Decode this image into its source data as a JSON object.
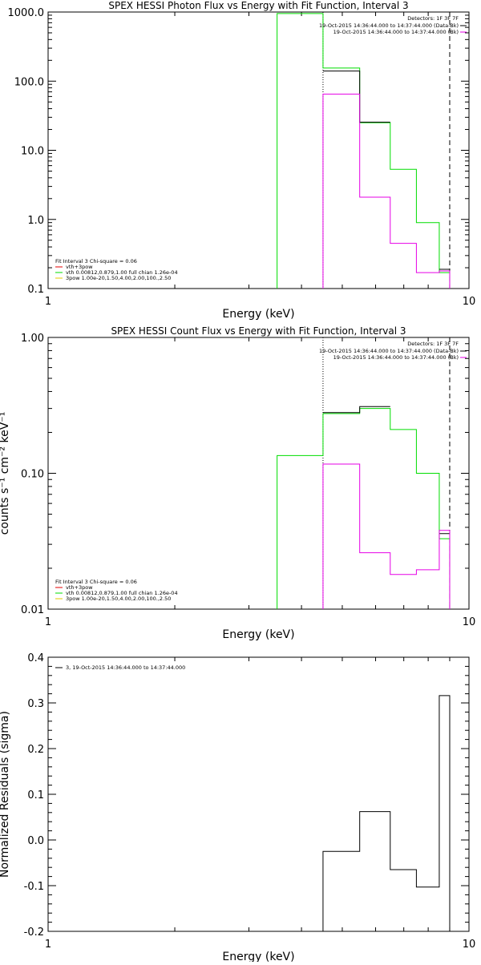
{
  "panels": [
    {
      "title": "SPEX HESSI Photon Flux vs Energy with Fit Function, Interval 3",
      "xlabel": "Energy (keV)",
      "ylabel": "",
      "detectors": "Detectors: 1F 3F 7F",
      "time_lines": [
        {
          "text": "19-Oct-2015 14:36:44.000 to 14:37:44.000 (Data-Bk)",
          "color": "#000000"
        },
        {
          "text": "19-Oct-2015 14:36:44.000 to 14:37:44.000 (Bk)",
          "color": "#e600e6"
        }
      ],
      "legend": [
        {
          "text": "Fit Interval 3   Chi-square = 0.06",
          "color": null
        },
        {
          "text": "vth+3pow",
          "color": "#e60000"
        },
        {
          "text": "vth 0.00812,0.879,1.00   full chian 1.26e-04",
          "color": "#00dd00"
        },
        {
          "text": "3pow 1.00e-20,1.50,4.00,2.00,100.,2.50",
          "color": "#e6c800"
        }
      ],
      "chart_data": {
        "type": "line",
        "xscale": "log",
        "yscale": "log",
        "xlim": [
          1,
          10
        ],
        "ylim": [
          0.1,
          1000
        ],
        "x_ticks": [
          {
            "v": 1,
            "label": "1"
          },
          {
            "v": 10,
            "label": "10"
          }
        ],
        "y_ticks": [
          {
            "v": 0.1,
            "label": "0.1"
          },
          {
            "v": 1,
            "label": "1.0"
          },
          {
            "v": 10,
            "label": "10.0"
          },
          {
            "v": 100,
            "label": "100.0"
          },
          {
            "v": 1000,
            "label": "1000.0"
          }
        ],
        "vlines": [
          {
            "x": 4.5,
            "dash": "dotted",
            "color": "#000000"
          },
          {
            "x": 9.0,
            "dash": "dashed",
            "color": "#000000"
          }
        ],
        "series": [
          {
            "color": "#00dd00",
            "bins": [
              [
                3.5,
                4.5,
                950
              ],
              [
                4.5,
                5.5,
                155
              ],
              [
                5.5,
                6.5,
                25
              ],
              [
                6.5,
                7.5,
                5.3
              ],
              [
                7.5,
                8.5,
                0.9
              ],
              [
                8.5,
                9.0,
                0.17
              ]
            ],
            "drop": true
          },
          {
            "color": "#000000",
            "bins": [
              [
                4.5,
                5.5,
                140
              ],
              [
                5.5,
                6.5,
                25.5
              ],
              [
                8.5,
                9.0,
                0.19
              ]
            ],
            "drop": false
          },
          {
            "color": "#e600e6",
            "bins": [
              [
                4.5,
                5.5,
                65
              ],
              [
                5.5,
                6.5,
                2.1
              ],
              [
                6.5,
                7.5,
                0.45
              ],
              [
                7.5,
                8.5,
                0.17
              ],
              [
                8.5,
                9.0,
                0.18
              ]
            ],
            "drop": true
          }
        ]
      }
    },
    {
      "title": "SPEX HESSI Count Flux vs Energy with Fit Function, Interval 3",
      "xlabel": "Energy (keV)",
      "ylabel": "counts s⁻¹ cm⁻² keV⁻¹",
      "detectors": "Detectors: 1F 3F 7F",
      "time_lines": [
        {
          "text": "19-Oct-2015 14:36:44.000 to 14:37:44.000 (Data-Bk)",
          "color": "#000000"
        },
        {
          "text": "19-Oct-2015 14:36:44.000 to 14:37:44.000 (Bk)",
          "color": "#e600e6"
        }
      ],
      "legend": [
        {
          "text": "Fit Interval 3   Chi-square = 0.06",
          "color": null
        },
        {
          "text": "vth+3pow",
          "color": "#e60000"
        },
        {
          "text": "vth 0.00812,0.879,1.00   full chian 1.26e-04",
          "color": "#00dd00"
        },
        {
          "text": "3pow 1.00e-20,1.50,4.00,2.00,100.,2.50",
          "color": "#e6c800"
        }
      ],
      "chart_data": {
        "type": "line",
        "xscale": "log",
        "yscale": "log",
        "xlim": [
          1,
          10
        ],
        "ylim": [
          0.01,
          1
        ],
        "x_ticks": [
          {
            "v": 1,
            "label": "1"
          },
          {
            "v": 10,
            "label": "10"
          }
        ],
        "y_ticks": [
          {
            "v": 0.01,
            "label": "0.01"
          },
          {
            "v": 0.1,
            "label": "0.10"
          },
          {
            "v": 1,
            "label": "1.00"
          }
        ],
        "vlines": [
          {
            "x": 4.5,
            "dash": "dotted",
            "color": "#000000"
          },
          {
            "x": 9.0,
            "dash": "dashed",
            "color": "#000000"
          }
        ],
        "series": [
          {
            "color": "#00dd00",
            "bins": [
              [
                3.5,
                4.5,
                0.135
              ],
              [
                4.5,
                5.5,
                0.275
              ],
              [
                5.5,
                6.5,
                0.3
              ],
              [
                6.5,
                7.5,
                0.21
              ],
              [
                7.5,
                8.5,
                0.1
              ],
              [
                8.5,
                9.0,
                0.033
              ]
            ],
            "drop": true
          },
          {
            "color": "#000000",
            "bins": [
              [
                4.5,
                5.5,
                0.28
              ],
              [
                5.5,
                6.5,
                0.31
              ],
              [
                8.5,
                9.0,
                0.036
              ]
            ],
            "drop": false
          },
          {
            "color": "#e600e6",
            "bins": [
              [
                4.5,
                5.5,
                0.117
              ],
              [
                5.5,
                6.5,
                0.026
              ],
              [
                6.5,
                7.5,
                0.018
              ],
              [
                7.5,
                8.5,
                0.0195
              ],
              [
                8.5,
                9.0,
                0.038
              ]
            ],
            "drop": true
          }
        ]
      }
    },
    {
      "title": "",
      "xlabel": "Energy (keV)",
      "ylabel": "Normalized Residuals (sigma)",
      "detectors": "",
      "time_lines": [],
      "legend": [
        {
          "text": "3, 19-Oct-2015 14:36:44.000 to 14:37:44.000",
          "color": "#000000"
        }
      ],
      "chart_data": {
        "type": "line",
        "xscale": "log",
        "yscale": "linear",
        "xlim": [
          1,
          10
        ],
        "ylim": [
          -0.2,
          0.4
        ],
        "x_ticks": [
          {
            "v": 1,
            "label": "1"
          },
          {
            "v": 10,
            "label": "10"
          }
        ],
        "y_ticks": [
          {
            "v": -0.2,
            "label": "-0.2"
          },
          {
            "v": -0.1,
            "label": "-0.1"
          },
          {
            "v": 0,
            "label": "0.0"
          },
          {
            "v": 0.1,
            "label": "0.1"
          },
          {
            "v": 0.2,
            "label": "0.2"
          },
          {
            "v": 0.3,
            "label": "0.3"
          },
          {
            "v": 0.4,
            "label": "0.4"
          }
        ],
        "vlines": [],
        "series": [
          {
            "color": "#000000",
            "bins": [
              [
                4.5,
                5.5,
                -0.025
              ],
              [
                5.5,
                6.5,
                0.062
              ],
              [
                6.5,
                7.5,
                -0.065
              ],
              [
                7.5,
                8.5,
                -0.103
              ],
              [
                8.5,
                9.0,
                0.316
              ]
            ],
            "drop": true
          }
        ]
      }
    }
  ]
}
